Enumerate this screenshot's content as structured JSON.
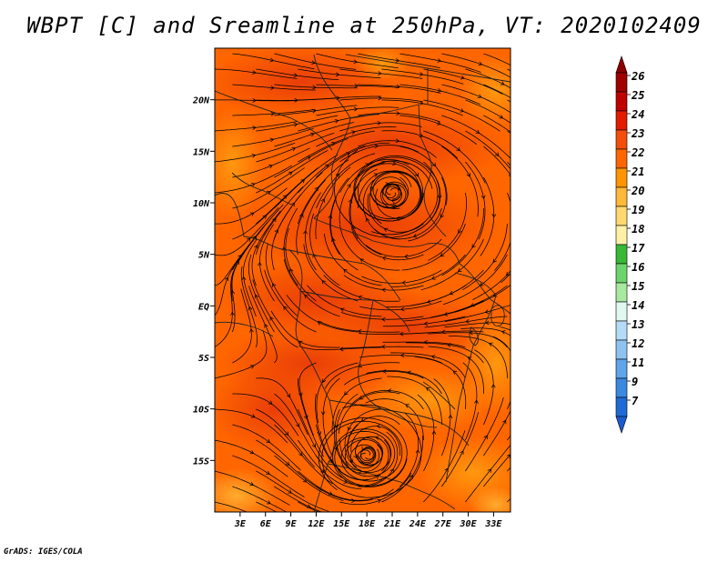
{
  "title": "WBPT [C] and Sreamline at 250hPa, VT: 2020102409",
  "credit": "GrADS: IGES/COLA",
  "map": {
    "lon_range": [
      0,
      35
    ],
    "lat_range": [
      -20,
      25
    ],
    "lat_ticks": [
      {
        "value": 20,
        "label": "20N"
      },
      {
        "value": 15,
        "label": "15N"
      },
      {
        "value": 10,
        "label": "10N"
      },
      {
        "value": 5,
        "label": "5N"
      },
      {
        "value": 0,
        "label": "EQ"
      },
      {
        "value": -5,
        "label": "5S"
      },
      {
        "value": -10,
        "label": "10S"
      },
      {
        "value": -15,
        "label": "15S"
      }
    ],
    "lon_ticks": [
      {
        "value": 3,
        "label": "3E"
      },
      {
        "value": 6,
        "label": "6E"
      },
      {
        "value": 9,
        "label": "9E"
      },
      {
        "value": 12,
        "label": "12E"
      },
      {
        "value": 15,
        "label": "15E"
      },
      {
        "value": 18,
        "label": "18E"
      },
      {
        "value": 21,
        "label": "21E"
      },
      {
        "value": 24,
        "label": "24E"
      },
      {
        "value": 27,
        "label": "27E"
      },
      {
        "value": 30,
        "label": "30E"
      },
      {
        "value": 33,
        "label": "33E"
      }
    ],
    "field_colors": {
      "base": "#ff6600",
      "warm": "#f24a0a",
      "cool": "#ff8a00",
      "coolest": "#ffaa20"
    },
    "vortices": [
      {
        "name": "cyclone-north",
        "lon": 21,
        "lat": 11
      },
      {
        "name": "cyclone-south",
        "lon": 18,
        "lat": -14.5
      }
    ]
  },
  "colorbar": {
    "levels": [
      {
        "label": "26",
        "color": "#a00000"
      },
      {
        "label": "25",
        "color": "#c00000"
      },
      {
        "label": "24",
        "color": "#e31a00"
      },
      {
        "label": "23",
        "color": "#f54d0a"
      },
      {
        "label": "22",
        "color": "#ff6600"
      },
      {
        "label": "21",
        "color": "#ff9600"
      },
      {
        "label": "20",
        "color": "#ffb838"
      },
      {
        "label": "19",
        "color": "#ffd970"
      },
      {
        "label": "18",
        "color": "#fff0a8"
      },
      {
        "label": "17",
        "color": "#37b837"
      },
      {
        "label": "16",
        "color": "#6cd46c"
      },
      {
        "label": "15",
        "color": "#a8e8a0"
      },
      {
        "label": "14",
        "color": "#e0f8f0"
      },
      {
        "label": "13",
        "color": "#b4dcf8"
      },
      {
        "label": "12",
        "color": "#8ec2f0"
      },
      {
        "label": "11",
        "color": "#60a4ea"
      },
      {
        "label": "9",
        "color": "#3a88e0"
      },
      {
        "label": "7",
        "color": "#1f6ad6"
      }
    ],
    "top_color": "#8c0000",
    "bottom_color": "#1a5cd0"
  }
}
